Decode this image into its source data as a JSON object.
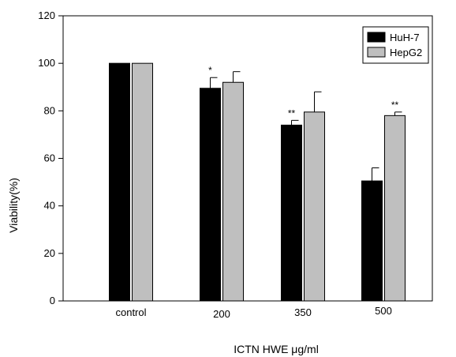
{
  "chart_data": {
    "type": "bar",
    "xlabel": "ICTN HWE μg/ml",
    "ylabel": "Viability(%)",
    "ylim": [
      0,
      120
    ],
    "yticks": [
      0,
      20,
      40,
      60,
      80,
      100,
      120
    ],
    "grid": false,
    "legend": "top-right",
    "categories": [
      "control",
      "200",
      "350",
      "500"
    ],
    "series": [
      {
        "name": "HuH-7",
        "color": "#000000",
        "values": [
          100,
          89.5,
          74,
          50.5
        ],
        "errors": [
          0,
          4.5,
          2,
          5.5
        ],
        "significance": [
          "",
          "*",
          "**",
          ""
        ]
      },
      {
        "name": "HepG2",
        "color": "#bfbfbf",
        "values": [
          100,
          92,
          79.5,
          78
        ],
        "errors": [
          0,
          4.5,
          8.5,
          1.5
        ],
        "significance": [
          "",
          "",
          "",
          "**"
        ]
      }
    ]
  }
}
